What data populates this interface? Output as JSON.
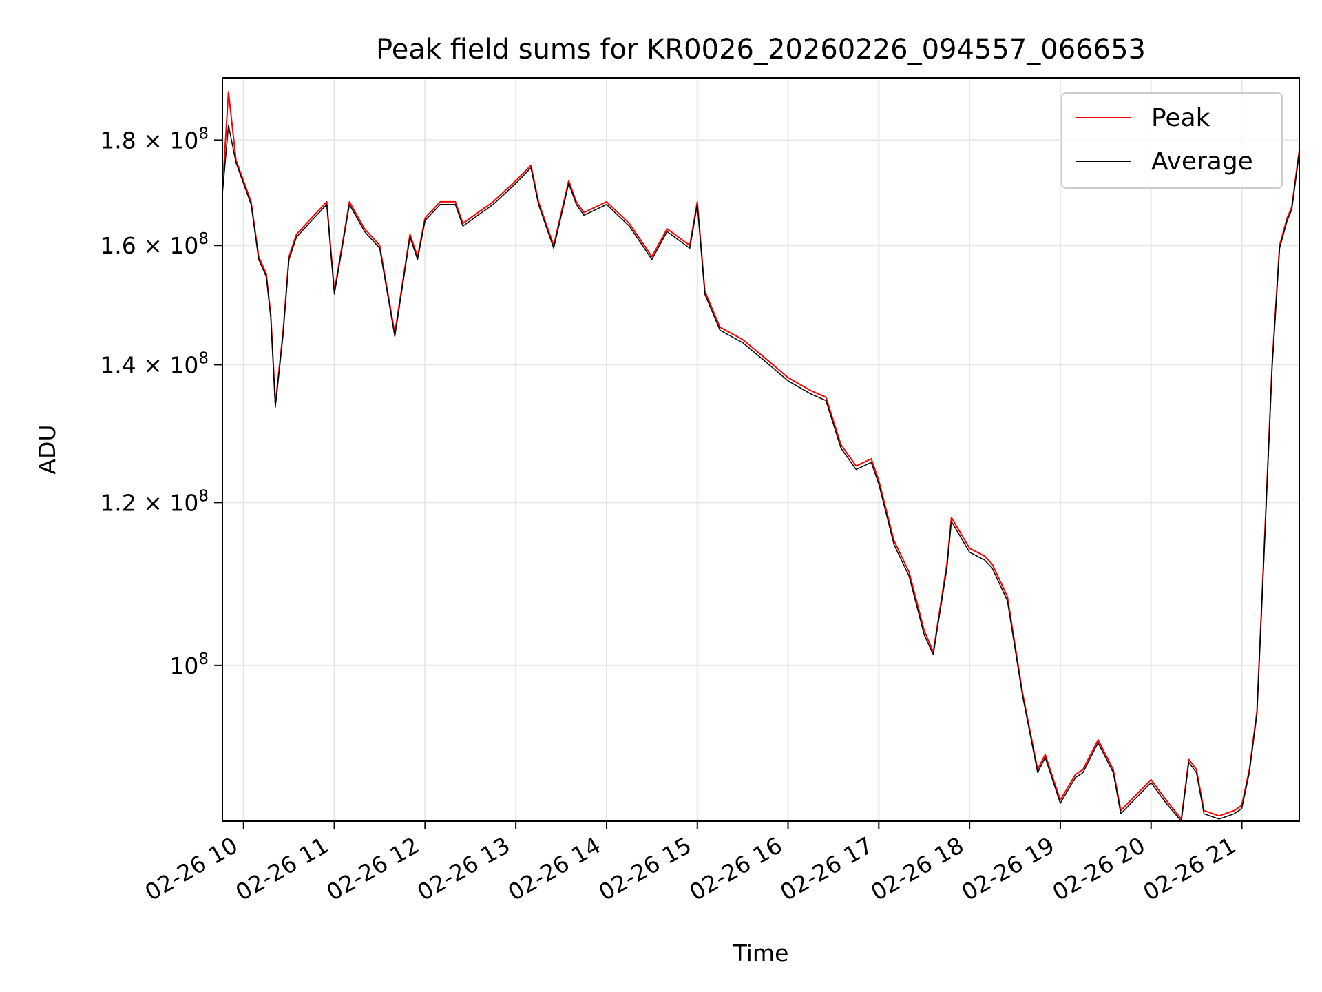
{
  "chart_data": {
    "type": "line",
    "title": "Peak field sums for KR0026_20260226_094557_066653",
    "xlabel": "Time",
    "ylabel": "ADU",
    "y_scale": "log",
    "ylim": [
      84000000,
      193000000
    ],
    "xlim": [
      "02-26 09:46",
      "02-26 21:38"
    ],
    "grid": true,
    "legend_position": "top-right",
    "x_ticks": [
      "02-26 10",
      "02-26 11",
      "02-26 12",
      "02-26 13",
      "02-26 14",
      "02-26 15",
      "02-26 16",
      "02-26 17",
      "02-26 18",
      "02-26 19",
      "02-26 20",
      "02-26 21"
    ],
    "y_ticks": [
      {
        "value": 100000000,
        "mantissa": "",
        "exponent": "8"
      },
      {
        "value": 120000000,
        "mantissa": "1.2",
        "exponent": "8"
      },
      {
        "value": 140000000,
        "mantissa": "1.4",
        "exponent": "8"
      },
      {
        "value": 160000000,
        "mantissa": "1.6",
        "exponent": "8"
      },
      {
        "value": 180000000,
        "mantissa": "1.8",
        "exponent": "8"
      }
    ],
    "x": [
      "02-26 09:46",
      "02-26 09:50",
      "02-26 09:55",
      "02-26 10:05",
      "02-26 10:10",
      "02-26 10:15",
      "02-26 10:18",
      "02-26 10:21",
      "02-26 10:26",
      "02-26 10:30",
      "02-26 10:35",
      "02-26 10:45",
      "02-26 10:55",
      "02-26 11:00",
      "02-26 11:10",
      "02-26 11:20",
      "02-26 11:30",
      "02-26 11:40",
      "02-26 11:50",
      "02-26 11:55",
      "02-26 12:00",
      "02-26 12:10",
      "02-26 12:20",
      "02-26 12:25",
      "02-26 12:35",
      "02-26 12:40",
      "02-26 12:45",
      "02-26 13:00",
      "02-26 13:10",
      "02-26 13:15",
      "02-26 13:25",
      "02-26 13:35",
      "02-26 13:40",
      "02-26 13:45",
      "02-26 14:00",
      "02-26 14:15",
      "02-26 14:30",
      "02-26 14:40",
      "02-26 14:55",
      "02-26 15:00",
      "02-26 15:05",
      "02-26 15:15",
      "02-26 15:30",
      "02-26 15:45",
      "02-26 16:00",
      "02-26 16:15",
      "02-26 16:25",
      "02-26 16:35",
      "02-26 16:45",
      "02-26 16:55",
      "02-26 17:00",
      "02-26 17:10",
      "02-26 17:20",
      "02-26 17:30",
      "02-26 17:36",
      "02-26 17:45",
      "02-26 17:48",
      "02-26 18:00",
      "02-26 18:10",
      "02-26 18:15",
      "02-26 18:25",
      "02-26 18:35",
      "02-26 18:45",
      "02-26 18:50",
      "02-26 19:00",
      "02-26 19:10",
      "02-26 19:15",
      "02-26 19:25",
      "02-26 19:35",
      "02-26 19:40",
      "02-26 19:50",
      "02-26 20:00",
      "02-26 20:10",
      "02-26 20:20",
      "02-26 20:25",
      "02-26 20:30",
      "02-26 20:35",
      "02-26 20:45",
      "02-26 20:55",
      "02-26 21:00",
      "02-26 21:05",
      "02-26 21:10",
      "02-26 21:15",
      "02-26 21:20",
      "02-26 21:25",
      "02-26 21:30",
      "02-26 21:33",
      "02-26 21:38"
    ],
    "series": [
      {
        "name": "Peak",
        "color": "#ff0000",
        "values": [
          170000000,
          190000000,
          176000000,
          168000000,
          158000000,
          155000000,
          148000000,
          134000000,
          145000000,
          158000000,
          162000000,
          165000000,
          168000000,
          152000000,
          168000000,
          163000000,
          160000000,
          145000000,
          162000000,
          158000000,
          165000000,
          168000000,
          168000000,
          164000000,
          166000000,
          167000000,
          168000000,
          172000000,
          175000000,
          168000000,
          160000000,
          172000000,
          168000000,
          166000000,
          168000000,
          164000000,
          158000000,
          163000000,
          160000000,
          168000000,
          152000000,
          146000000,
          144000000,
          141000000,
          138000000,
          136000000,
          135000000,
          128000000,
          125000000,
          126000000,
          123000000,
          115000000,
          111000000,
          104000000,
          101500000,
          112000000,
          118000000,
          114000000,
          113000000,
          112000000,
          108000000,
          97000000,
          89000000,
          90500000,
          86000000,
          88500000,
          89000000,
          92000000,
          89000000,
          85000000,
          86500000,
          88000000,
          86000000,
          84200000,
          90000000,
          89000000,
          85000000,
          84500000,
          85000000,
          85500000,
          89000000,
          95000000,
          115000000,
          140000000,
          160000000,
          165000000,
          167000000,
          178000000
        ]
      },
      {
        "name": "Average",
        "color": "#000000",
        "values": [
          169500000,
          183000000,
          175500000,
          167500000,
          157500000,
          154500000,
          147500000,
          133500000,
          144500000,
          157500000,
          161500000,
          164500000,
          167500000,
          151500000,
          167500000,
          162500000,
          159500000,
          144500000,
          161500000,
          157500000,
          164500000,
          167500000,
          167500000,
          163500000,
          165500000,
          166500000,
          167500000,
          171500000,
          174500000,
          167500000,
          159500000,
          171500000,
          167500000,
          165500000,
          167500000,
          163500000,
          157500000,
          162500000,
          159500000,
          167500000,
          151500000,
          145500000,
          143500000,
          140500000,
          137500000,
          135500000,
          134500000,
          127500000,
          124500000,
          125500000,
          122500000,
          114500000,
          110500000,
          103500000,
          101200000,
          111500000,
          117500000,
          113500000,
          112500000,
          111500000,
          107500000,
          96700000,
          88700000,
          90200000,
          85700000,
          88200000,
          88700000,
          91700000,
          88700000,
          84700000,
          86200000,
          87700000,
          85700000,
          84000000,
          89700000,
          88700000,
          84700000,
          84200000,
          84700000,
          85200000,
          88700000,
          94700000,
          114500000,
          139500000,
          159500000,
          164500000,
          166500000,
          177500000
        ]
      }
    ]
  }
}
